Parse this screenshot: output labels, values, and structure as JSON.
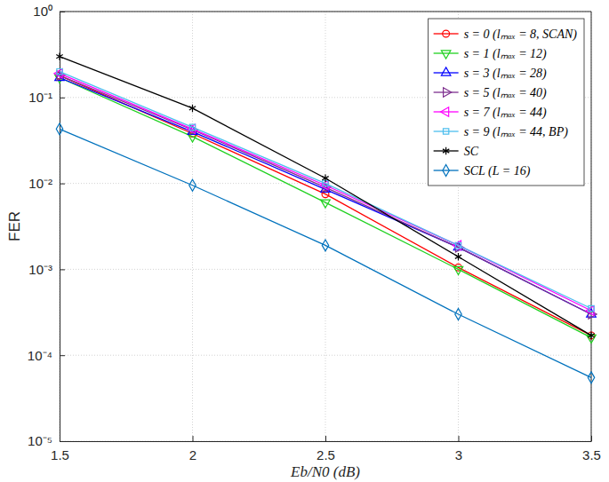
{
  "chart_data": {
    "type": "line",
    "x_label": "Eb/N0 (dB)",
    "y_label": "FER",
    "log": "y",
    "grid": true,
    "legend": "upper right",
    "x": [
      1.5,
      2,
      2.5,
      3,
      3.5
    ],
    "xlim": [
      1.5,
      3.5
    ],
    "xticks": [
      1.5,
      2,
      2.5,
      3,
      3.5
    ],
    "ylim": [
      1e-05,
      1
    ],
    "yticks": [
      {
        "value": 1e-05,
        "label": "10⁻⁵"
      },
      {
        "value": 0.0001,
        "label": "10⁻⁴"
      },
      {
        "value": 0.001,
        "label": "10⁻³"
      },
      {
        "value": 0.01,
        "label": "10⁻²"
      },
      {
        "value": 0.1,
        "label": "10⁻¹"
      },
      {
        "value": 1,
        "label": "10⁰"
      }
    ],
    "series": [
      {
        "name": "s = 0 (lₘₐₓ = 8, SCAN)",
        "color": "#ff0000",
        "marker": "circle",
        "line_style": "solid",
        "values": [
          0.18,
          0.038,
          0.0075,
          0.00105,
          0.00017
        ]
      },
      {
        "name": "s = 1 (lₘₐₓ = 12)",
        "color": "#1fd11f",
        "marker": "triangle-down",
        "line_style": "solid",
        "values": [
          0.17,
          0.035,
          0.006,
          0.001,
          0.00016
        ]
      },
      {
        "name": "s = 3 (lₘₐₓ = 28)",
        "color": "#0000ff",
        "marker": "triangle-up",
        "line_style": "solid",
        "values": [
          0.17,
          0.04,
          0.0085,
          0.0018,
          0.0003
        ]
      },
      {
        "name": "s = 5 (lₘₐₓ = 40)",
        "color": "#7e2f8e",
        "marker": "triangle-right",
        "line_style": "solid",
        "values": [
          0.18,
          0.042,
          0.009,
          0.0018,
          0.0003
        ]
      },
      {
        "name": "s = 7 (lₘₐₓ = 44)",
        "color": "#ff00ff",
        "marker": "triangle-left",
        "line_style": "solid",
        "values": [
          0.19,
          0.043,
          0.0095,
          0.0019,
          0.00033
        ]
      },
      {
        "name": "s = 9 (lₘₐₓ = 44, BP)",
        "color": "#4dbeee",
        "marker": "square",
        "line_style": "solid",
        "values": [
          0.2,
          0.045,
          0.01,
          0.0019,
          0.00035
        ]
      },
      {
        "name": "SC",
        "color": "#000000",
        "marker": "asterisk",
        "line_style": "solid",
        "values": [
          0.3,
          0.075,
          0.0115,
          0.0014,
          0.00017
        ]
      },
      {
        "name": "SCL (L = 16)",
        "color": "#0072bd",
        "marker": "diamond",
        "line_style": "solid",
        "values": [
          0.043,
          0.0095,
          0.0019,
          0.0003,
          5.5e-05
        ]
      }
    ]
  }
}
